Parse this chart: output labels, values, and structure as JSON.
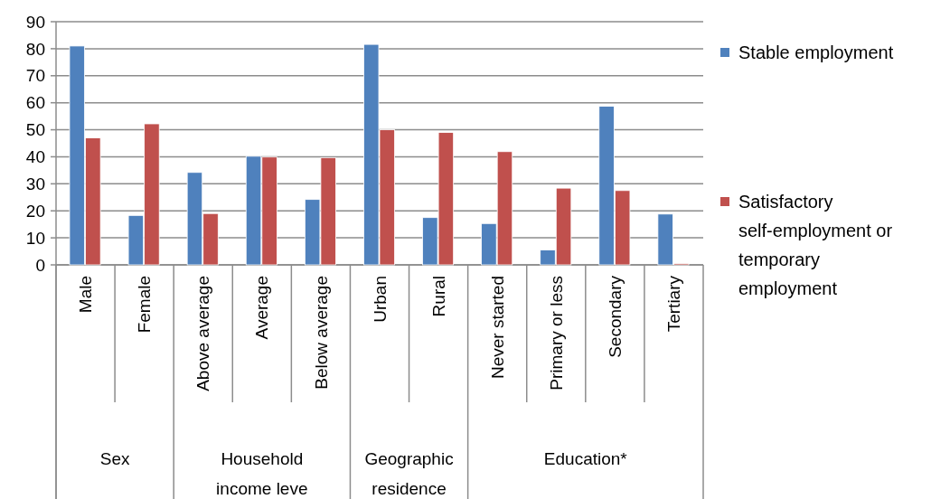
{
  "chart_data": {
    "type": "bar",
    "categories": [
      "Male",
      "Female",
      "Above average",
      "Average",
      "Below average",
      "Urban",
      "Rural",
      "Never started",
      "Primary or less",
      "Secondary",
      "Tertiary"
    ],
    "series": [
      {
        "name": "Stable employment",
        "color": "#4f81bd",
        "values": [
          81,
          18.3,
          34.2,
          40.2,
          24.2,
          81.6,
          17.5,
          15.3,
          5.5,
          58.7,
          18.8
        ]
      },
      {
        "name": "Satisfactory self-employment or temporary employment",
        "color": "#c0504d",
        "values": [
          47,
          52.2,
          19,
          39.9,
          39.7,
          50,
          49,
          41.9,
          28.4,
          27.5,
          0.5
        ]
      }
    ],
    "ylim": [
      0,
      90
    ],
    "yticks": [
      0,
      10,
      20,
      30,
      40,
      50,
      60,
      70,
      80,
      90
    ],
    "grid": "y",
    "legend": "right",
    "annotations": [
      "Sex",
      "Household income leve",
      "Geographic residence",
      "Education*"
    ]
  }
}
